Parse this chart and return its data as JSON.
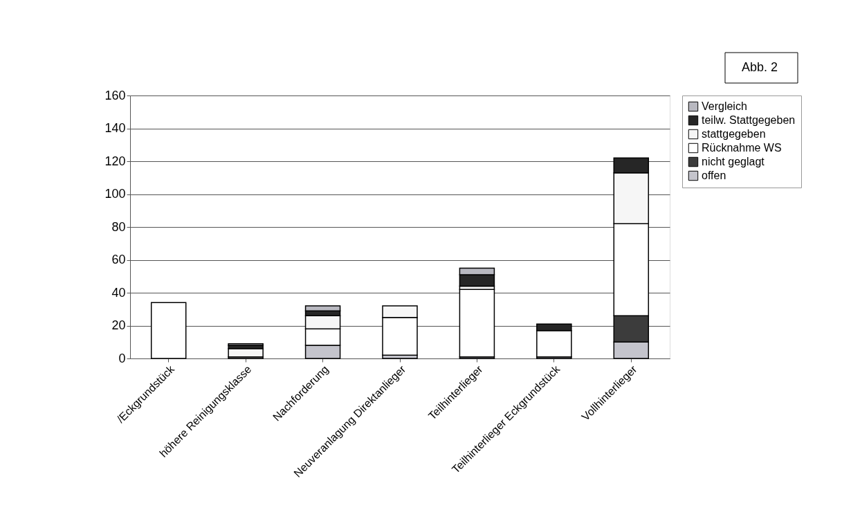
{
  "chart_data": {
    "type": "bar",
    "stacked": true,
    "categories": [
      "/Eckgrundstück",
      "höhere Reinigungsklasse",
      "Nachforderung",
      "Neuveranlagung Direktanlieger",
      "Teilhinterlieger",
      "Teilhinterlieger Eckgrundstück",
      "Vollhinterlieger"
    ],
    "series": [
      {
        "name": "offen",
        "color": "#c4c4cc",
        "values": [
          0,
          1,
          8,
          2,
          1,
          1,
          10
        ]
      },
      {
        "name": "nicht geglagt",
        "color": "#3c3c3c",
        "values": [
          0,
          0,
          0,
          0,
          0,
          0,
          16
        ]
      },
      {
        "name": "Rücknahme WS",
        "color": "#ffffff",
        "values": [
          34,
          0,
          10,
          23,
          41,
          16,
          56
        ]
      },
      {
        "name": "stattgegeben",
        "color": "#f6f6f6",
        "values": [
          0,
          5,
          8,
          7,
          2,
          0,
          31
        ]
      },
      {
        "name": "teilw. Stattgegeben",
        "color": "#262626",
        "values": [
          0,
          2,
          3,
          0,
          7,
          4,
          9
        ]
      },
      {
        "name": "Vergleich",
        "color": "#b8b8c0",
        "values": [
          0,
          1,
          3,
          0,
          4,
          0,
          0
        ]
      }
    ],
    "ylim": [
      0,
      160
    ],
    "yticks": [
      0,
      20,
      40,
      60,
      80,
      100,
      120,
      140,
      160
    ],
    "grid": "y",
    "legend": "right",
    "annotations": [
      "Abb. 2"
    ]
  }
}
